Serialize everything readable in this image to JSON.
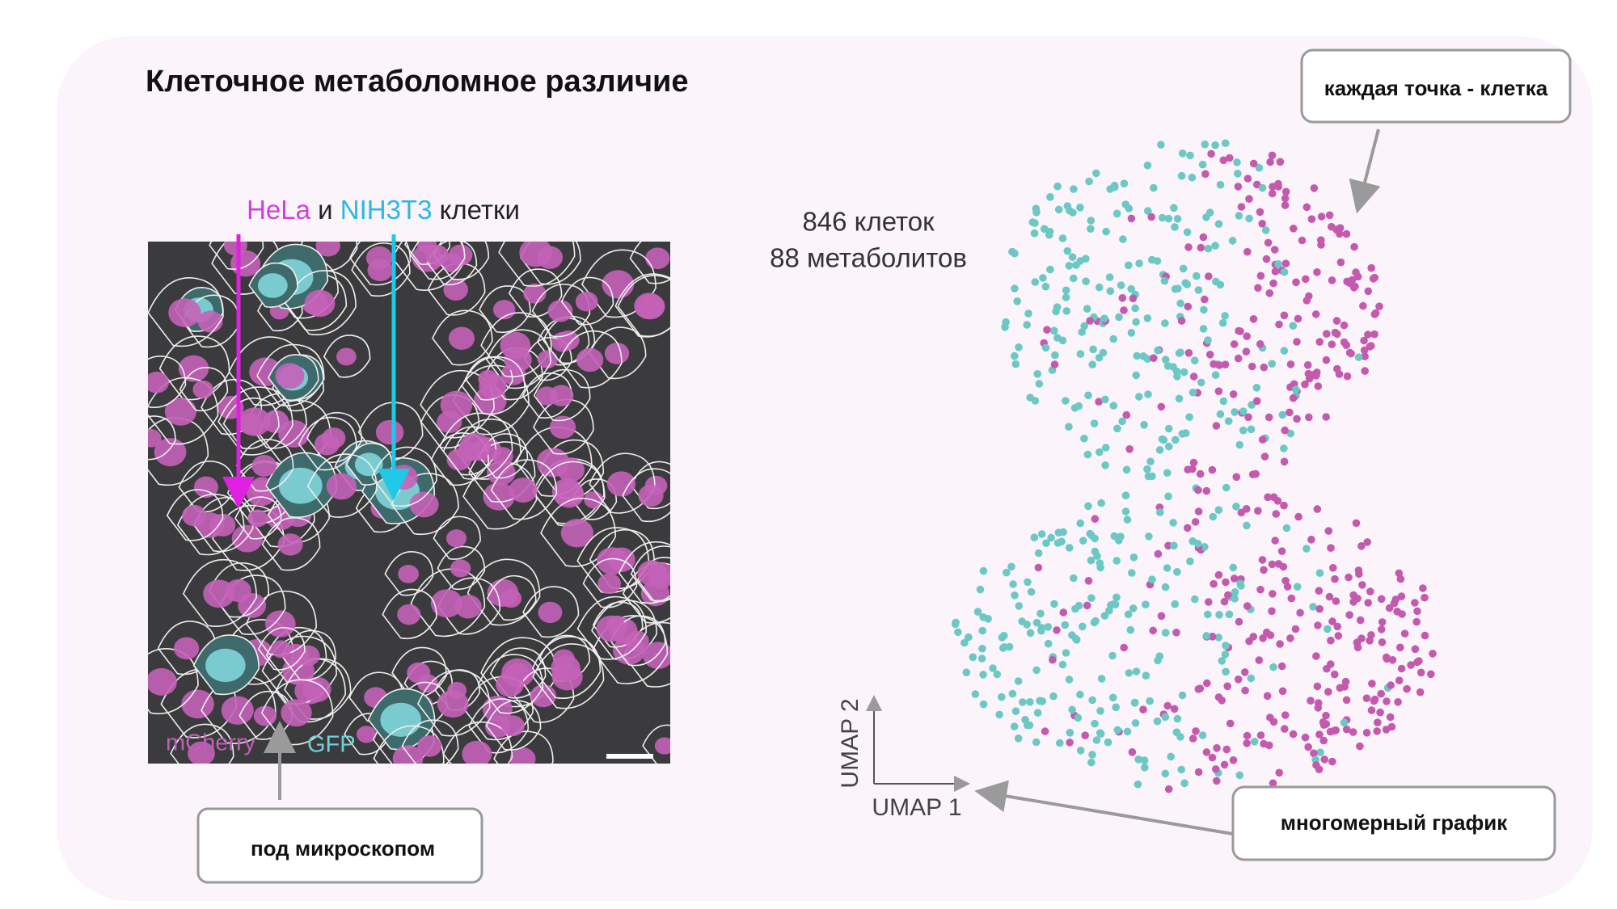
{
  "title": "Клеточное метаболомное различие",
  "microscopy": {
    "heading": {
      "hela": "HeLa",
      "and": "и",
      "nih": "NIH3T3",
      "cells": "клетки"
    },
    "channels": {
      "mcherry": "mCherry",
      "gfp": "GFP"
    },
    "callout": "под микроскопом"
  },
  "stats": {
    "cells": "846 клеток",
    "metabolites": "88 метаболитов"
  },
  "umap": {
    "x_label": "UMAP 1",
    "y_label": "UMAP 2",
    "callout_points": "каждая точка - клетка",
    "callout_plot": "многомерный график"
  }
}
